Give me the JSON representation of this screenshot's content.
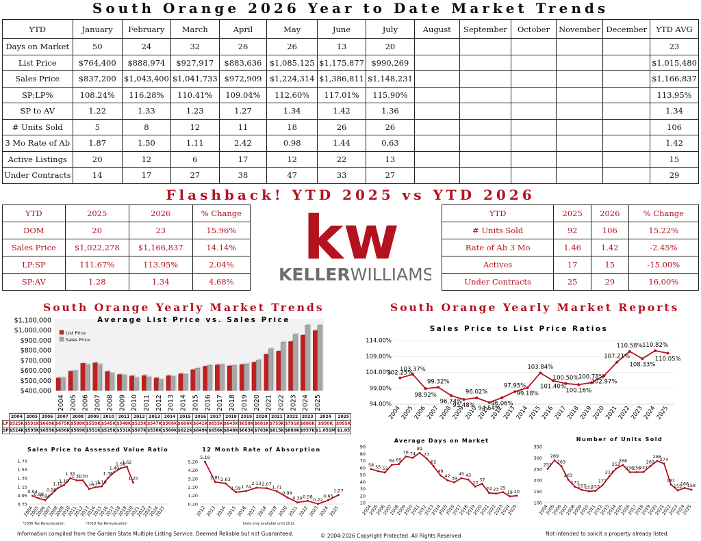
{
  "title": "South Orange 2026 Year to Date Market Trends",
  "ytd_table": {
    "header": [
      "YTD",
      "January",
      "February",
      "March",
      "April",
      "May",
      "June",
      "July",
      "August",
      "September",
      "October",
      "November",
      "December",
      "YTD AVG"
    ],
    "rows": [
      [
        "Days on Market",
        "50",
        "24",
        "32",
        "26",
        "26",
        "13",
        "20",
        "",
        "",
        "",
        "",
        "",
        "23"
      ],
      [
        "List Price",
        "$764,400",
        "$888,974",
        "$927,917",
        "$883,636",
        "$1,085,125",
        "$1,175,877",
        "$990,269",
        "",
        "",
        "",
        "",
        "",
        "$1,015,480"
      ],
      [
        "Sales Price",
        "$837,200",
        "$1,043,400",
        "$1,041,733",
        "$972,909",
        "$1,224,314",
        "$1,386,811",
        "$1,148,231",
        "",
        "",
        "",
        "",
        "",
        "$1,166,837"
      ],
      [
        "SP:LP%",
        "108.24%",
        "116.28%",
        "110.41%",
        "109.04%",
        "112.60%",
        "117.01%",
        "115.90%",
        "",
        "",
        "",
        "",
        "",
        "113.95%"
      ],
      [
        "SP to AV",
        "1.22",
        "1.33",
        "1.23",
        "1.27",
        "1.34",
        "1.42",
        "1.36",
        "",
        "",
        "",
        "",
        "",
        "1.34"
      ],
      [
        "# Units Sold",
        "5",
        "8",
        "12",
        "11",
        "18",
        "26",
        "26",
        "",
        "",
        "",
        "",
        "",
        "106"
      ],
      [
        "3 Mo Rate of Ab",
        "1.87",
        "1.50",
        "1.11",
        "2.42",
        "0.98",
        "1.44",
        "0.63",
        "",
        "",
        "",
        "",
        "",
        "1.42"
      ],
      [
        "Active Listings",
        "20",
        "12",
        "6",
        "17",
        "12",
        "22",
        "13",
        "",
        "",
        "",
        "",
        "",
        "15"
      ],
      [
        "Under Contracts",
        "14",
        "17",
        "27",
        "38",
        "47",
        "33",
        "27",
        "",
        "",
        "",
        "",
        "",
        "29"
      ]
    ]
  },
  "flashback_title": "Flashback!  YTD 2025 vs YTD 2026",
  "flashback_left": {
    "header": [
      "YTD",
      "2025",
      "2026",
      "% Change"
    ],
    "rows": [
      [
        "DOM",
        "20",
        "23",
        "15.96%"
      ],
      [
        "Sales Price",
        "$1,022,278",
        "$1,166,837",
        "14.14%"
      ],
      [
        "LP:SP",
        "111.67%",
        "113.95%",
        "2.04%"
      ],
      [
        "SP:AV",
        "1.28",
        "1.34",
        "4.68%"
      ]
    ]
  },
  "flashback_right": {
    "header": [
      "YTD",
      "2025",
      "2026",
      "% Change"
    ],
    "rows": [
      [
        "# Units Sold",
        "92",
        "106",
        "15.22%"
      ],
      [
        "Rate of Ab 3 Mo",
        "1.46",
        "1.42",
        "-2.45%"
      ],
      [
        "Actives",
        "17",
        "15",
        "-15.00%"
      ],
      [
        "Under Contracts",
        "25",
        "29",
        "16.00%"
      ]
    ]
  },
  "logo": {
    "kw": "kw",
    "brand_bold": "KELLER",
    "brand_light": "WILLIAMS",
    "reg": "®",
    "color": "#b3121f"
  },
  "section_left_title": "South Orange Yearly Market Trends",
  "section_right_title": "South Orange Yearly Market Reports",
  "small_table": {
    "years": [
      "2004",
      "2005",
      "2006",
      "2007",
      "2008",
      "2009",
      "2010",
      "2011",
      "2012",
      "2013",
      "2014",
      "2015",
      "2016",
      "2017",
      "2018",
      "2019",
      "2020",
      "2021",
      "2022",
      "2023",
      "2024",
      "2025"
    ],
    "lp_label": "LP",
    "lp": [
      "$525K",
      "$591K",
      "$669K",
      "$675K",
      "$588K",
      "$559K",
      "$545K",
      "$548K",
      "$525K",
      "$547K",
      "$566K",
      "$606K",
      "$641K",
      "$655K",
      "$645K",
      "$658K",
      "$681K",
      "$759K",
      "$791K",
      "$886K",
      "$950K",
      "$995K"
    ],
    "sp_label": "SP",
    "sp": [
      "$524K",
      "$595K",
      "$655K",
      "$656K",
      "$569K",
      "$551K",
      "$525K",
      "$531K",
      "$507K",
      "$538K",
      "$560K",
      "$622K",
      "$649K",
      "$656K",
      "$648K",
      "$663K",
      "$703K",
      "$815K",
      "$880K",
      "$957K",
      "$1.051M",
      "$1.05"
    ]
  },
  "footer": {
    "left": "Information compiled from the Garden State Multiple Listing Service.  Deemed Reliable but not Guaranteed.",
    "center": "© 2004-2026 Copyright Protected.  All Rights Reserved",
    "right": "Not intended to solicit a property already listed.",
    "note1": "*2008 Tax Re-evaluation",
    "note2": "*2018 Tax Re-evaluation",
    "note3": "Data only available until 2012"
  },
  "chart_data": [
    {
      "type": "bar",
      "title": "Average List Price vs. Sales Price",
      "categories": [
        "2004",
        "2005",
        "2006",
        "2007",
        "2008",
        "2009",
        "2010",
        "2011",
        "2012",
        "2013",
        "2014",
        "2015",
        "2016",
        "2017",
        "2018",
        "2019",
        "2020",
        "2021",
        "2022",
        "2023",
        "2024",
        "2025"
      ],
      "series": [
        {
          "name": "List Price",
          "color": "#c41e1e",
          "values": [
            525000,
            591000,
            669000,
            675000,
            588000,
            559000,
            545000,
            548000,
            525000,
            547000,
            566000,
            606000,
            641000,
            655000,
            645000,
            658000,
            681000,
            759000,
            791000,
            886000,
            950000,
            995000
          ]
        },
        {
          "name": "Sales Price",
          "color": "#a8a8a8",
          "values": [
            524000,
            595000,
            655000,
            656000,
            569000,
            551000,
            525000,
            531000,
            507000,
            538000,
            560000,
            622000,
            649000,
            656000,
            648000,
            663000,
            703000,
            815000,
            880000,
            957000,
            1051000,
            1050000
          ]
        }
      ],
      "yticks": [
        "$400,000",
        "$500,000",
        "$600,000",
        "$700,000",
        "$800,000",
        "$900,000",
        "$1,000,000",
        "$1,100,000"
      ],
      "ylim": [
        400000,
        1100000
      ],
      "legend": "top-left"
    },
    {
      "type": "line",
      "title": "Sales Price to List Price Ratios",
      "x": [
        "2004",
        "2005",
        "2006",
        "2007",
        "2008",
        "2009",
        "2010",
        "2011",
        "2012",
        "2013",
        "2014",
        "2015",
        "2016",
        "2017",
        "2018",
        "2019",
        "2020",
        "2021",
        "2022",
        "2023",
        "2024",
        "2025"
      ],
      "values": [
        102.25,
        103.37,
        98.92,
        99.32,
        96.74,
        95.48,
        96.02,
        94.54,
        96.06,
        97.95,
        99.18,
        103.84,
        101.4,
        100.5,
        100.16,
        100.78,
        102.97,
        107.21,
        110.58,
        108.33,
        110.82,
        110.05
      ],
      "labels": [
        "102.25%",
        "103.37%",
        "98.92%",
        "99.32%",
        "96.74%",
        "95.48%",
        "96.02%",
        "94.54%",
        "96.06%",
        "97.95%",
        "99.18%",
        "103.84%",
        "101.40%",
        "100.50%",
        "100.16%",
        "100.78%",
        "102.97%",
        "107.21%",
        "110.58%",
        "108.33%",
        "110.82%",
        "110.05%"
      ],
      "yticks": [
        "94.00%",
        "99.00%",
        "104.00%",
        "109.00%",
        "114.00%"
      ],
      "ylim": [
        94,
        114
      ],
      "grid": true
    },
    {
      "type": "line",
      "title": "Sales Price to Assessed Value Ratio",
      "x": [
        "2004",
        "2005",
        "2006",
        "2007",
        "2008",
        "2009",
        "2010",
        "2011",
        "2012",
        "2013",
        "2014",
        "2015",
        "2016",
        "2017",
        "2018",
        "2019",
        "2020",
        "2021",
        "2022",
        "2023",
        "2024",
        "2025"
      ],
      "values": [
        0.94,
        0.88,
        0.84,
        0.98,
        1.12,
        1.19,
        1.35,
        1.3,
        1.3,
        1.1,
        1.14,
        1.16,
        1.36,
        1.49,
        1.58,
        1.62,
        1.25
      ],
      "x_for_values": [
        "2004",
        "2005",
        "2006",
        "2007",
        "2008",
        "2009",
        "2010",
        "2011",
        "2012",
        "2013",
        "2014",
        "2015",
        "2016",
        "2017",
        "2018",
        "2019",
        "2020"
      ],
      "labels": [
        "0.94",
        "0.88",
        "0.84",
        "0.98",
        "1.12",
        "1.19",
        "1.35",
        "1.30",
        "1.30",
        "1.10",
        "1.14",
        "1.16",
        "1.36",
        "1.49",
        "1.58",
        "1.62",
        "1.25"
      ],
      "yticks": [
        "0.75",
        "0.95",
        "1.15",
        "1.35",
        "1.55",
        "1.75"
      ],
      "ylim": [
        0.75,
        1.75
      ]
    },
    {
      "type": "line",
      "title": "12 Month Rate of Absorption",
      "x": [
        "2012",
        "2013",
        "2014",
        "2015",
        "2016",
        "2017",
        "2018",
        "2019",
        "2020",
        "2021",
        "2022",
        "2023",
        "2024",
        "2025"
      ],
      "values": [
        5.19,
        2.81,
        2.63,
        1.59,
        1.74,
        2.13,
        2.07,
        1.71,
        0.99,
        0.39,
        0.58,
        0.22,
        0.65,
        1.27
      ],
      "labels": [
        "5.19",
        "2.81",
        "2.63",
        "1.59",
        "1.74",
        "2.13",
        "2.07",
        "1.71",
        "0.99",
        "0.39",
        "0.58",
        "0.22",
        "0.65",
        "1.27"
      ],
      "yticks": [
        "0.20",
        "1.20",
        "2.20",
        "3.20",
        "4.20",
        "5.20"
      ],
      "ylim": [
        0.2,
        5.2
      ]
    },
    {
      "type": "line",
      "title": "Average Days on Market",
      "x": [
        "2004",
        "2005",
        "2006",
        "2007",
        "2008",
        "2009",
        "2010",
        "2011",
        "2012",
        "2013",
        "2014",
        "2015",
        "2016",
        "2017",
        "2018",
        "2019",
        "2020",
        "2021",
        "2022",
        "2023",
        "2024",
        "2025"
      ],
      "values": [
        58,
        55,
        53,
        64,
        65,
        76,
        74,
        81,
        73,
        62,
        49,
        42,
        39,
        45,
        43,
        33,
        37,
        24,
        23,
        25,
        19,
        20
      ],
      "labels": [
        "58",
        "55",
        "53",
        "64",
        "65",
        "76",
        "74",
        "81",
        "73",
        "62",
        "49",
        "42",
        "39",
        "45",
        "43",
        "33",
        "37",
        "24",
        "23",
        "25",
        "19",
        "20"
      ],
      "yticks": [
        "10",
        "20",
        "30",
        "40",
        "50",
        "60",
        "70",
        "80",
        "90"
      ],
      "ylim": [
        10,
        90
      ]
    },
    {
      "type": "line",
      "title": "Number of Units Sold",
      "x": [
        "2004",
        "2005",
        "2006",
        "2007",
        "2008",
        "2009",
        "2010",
        "2011",
        "2012",
        "2013",
        "2014",
        "2015",
        "2016",
        "2017",
        "2018",
        "2019",
        "2020",
        "2021",
        "2022",
        "2023",
        "2024",
        "2025"
      ],
      "values": [
        251,
        289,
        263,
        203,
        171,
        157,
        151,
        153,
        177,
        217,
        252,
        268,
        236,
        236,
        237,
        263,
        286,
        274,
        181,
        155,
        166,
        158
      ],
      "labels": [
        "251",
        "289",
        "263",
        "203",
        "171",
        "157",
        "151",
        "153",
        "177",
        "217",
        "252",
        "268",
        "236",
        "236",
        "237",
        "263",
        "286",
        "274",
        "181",
        "155",
        "166",
        "158"
      ],
      "yticks": [
        "100",
        "150",
        "200",
        "250",
        "300",
        "350"
      ],
      "ylim": [
        100,
        350
      ]
    }
  ]
}
